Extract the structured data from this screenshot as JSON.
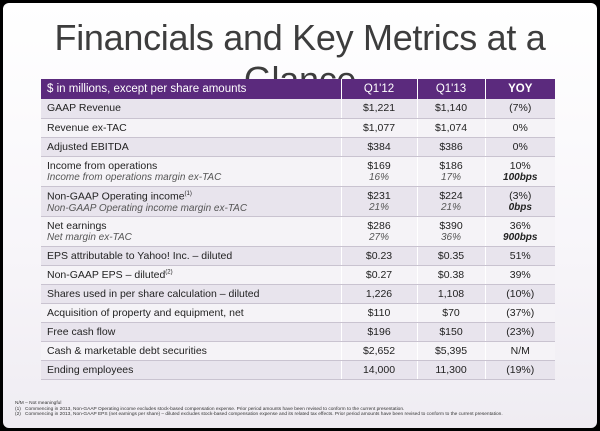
{
  "title": "Financials and Key Metrics at a Glance",
  "table": {
    "headers": {
      "label": "$ in millions, except per share amounts",
      "q1_12": "Q1'12",
      "q1_13": "Q1'13",
      "yoy": "YOY"
    },
    "rows": [
      {
        "label": "GAAP Revenue",
        "q1_12": "$1,221",
        "q1_13": "$1,140",
        "yoy": "(7%)"
      },
      {
        "label": "Revenue ex-TAC",
        "q1_12": "$1,077",
        "q1_13": "$1,074",
        "yoy": "0%"
      },
      {
        "label": "Adjusted EBITDA",
        "q1_12": "$384",
        "q1_13": "$386",
        "yoy": "0%"
      },
      {
        "label": "Income from operations",
        "sublabel": "Income from operations margin ex-TAC",
        "q1_12": "$169",
        "q1_12_sub": "16%",
        "q1_13": "$186",
        "q1_13_sub": "17%",
        "yoy": "10%",
        "yoy_sub": "100bps"
      },
      {
        "label": "Non-GAAP Operating income",
        "sup": "(1)",
        "sublabel": "Non-GAAP Operating income margin ex-TAC",
        "q1_12": "$231",
        "q1_12_sub": "21%",
        "q1_13": "$224",
        "q1_13_sub": "21%",
        "yoy": "(3%)",
        "yoy_sub": "0bps"
      },
      {
        "label": "Net earnings",
        "sublabel": "Net margin ex-TAC",
        "q1_12": "$286",
        "q1_12_sub": "27%",
        "q1_13": "$390",
        "q1_13_sub": "36%",
        "yoy": "36%",
        "yoy_sub": "900bps"
      },
      {
        "label": "EPS attributable to Yahoo! Inc. – diluted",
        "q1_12": "$0.23",
        "q1_13": "$0.35",
        "yoy": "51%"
      },
      {
        "label": "Non-GAAP EPS – diluted",
        "sup": "(2)",
        "q1_12": "$0.27",
        "q1_13": "$0.38",
        "yoy": "39%"
      },
      {
        "label": "Shares used in per share calculation – diluted",
        "q1_12": "1,226",
        "q1_13": "1,108",
        "yoy": "(10%)"
      },
      {
        "label": "Acquisition of property and equipment, net",
        "q1_12": "$110",
        "q1_13": "$70",
        "yoy": "(37%)"
      },
      {
        "label": "Free cash flow",
        "q1_12": "$196",
        "q1_13": "$150",
        "yoy": "(23%)"
      },
      {
        "label": "Cash & marketable debt securities",
        "q1_12": "$2,652",
        "q1_13": "$5,395",
        "yoy": "N/M"
      },
      {
        "label": "Ending employees",
        "q1_12": "14,000",
        "q1_13": "11,300",
        "yoy": "(19%)"
      }
    ]
  },
  "footnotes": {
    "nm": "N/M – Not meaningful",
    "items": [
      {
        "num": "(1)",
        "text": "Commencing in 2013, Non-GAAP Operating income excludes stock-based compensation expense.  Prior period amounts have been revised to conform to the current presentation."
      },
      {
        "num": "(2)",
        "text": "Commencing in 2013, Non-GAAP EPS (net earnings per share) – diluted excludes stock-based compensation expense and its related tax effects.  Prior period amounts have been revised to conform to the current presentation."
      }
    ]
  }
}
